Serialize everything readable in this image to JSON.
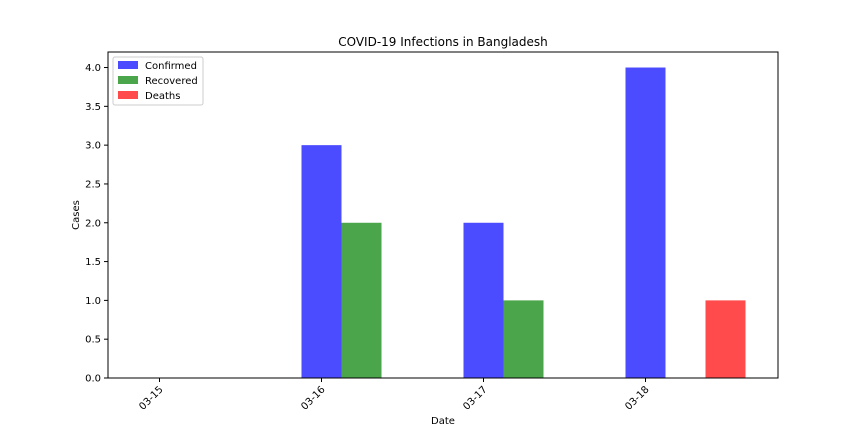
{
  "chart_data": {
    "type": "bar",
    "title": "COVID-19 Infections in Bangladesh",
    "xlabel": "Date",
    "ylabel": "Cases",
    "categories": [
      "03-15",
      "03-16",
      "03-17",
      "03-18"
    ],
    "series": [
      {
        "name": "Confirmed",
        "color": "#4b4bff",
        "values": [
          0,
          3,
          2,
          4
        ]
      },
      {
        "name": "Recovered",
        "color": "#4ba64b",
        "values": [
          0,
          2,
          1,
          0
        ]
      },
      {
        "name": "Deaths",
        "color": "#ff4b4b",
        "values": [
          0,
          0,
          0,
          1
        ]
      }
    ],
    "ylim": [
      0,
      4.2
    ],
    "yticks": [
      0.0,
      0.5,
      1.0,
      1.5,
      2.0,
      2.5,
      3.0,
      3.5,
      4.0
    ],
    "grid": false,
    "legend_position": "top-left"
  }
}
